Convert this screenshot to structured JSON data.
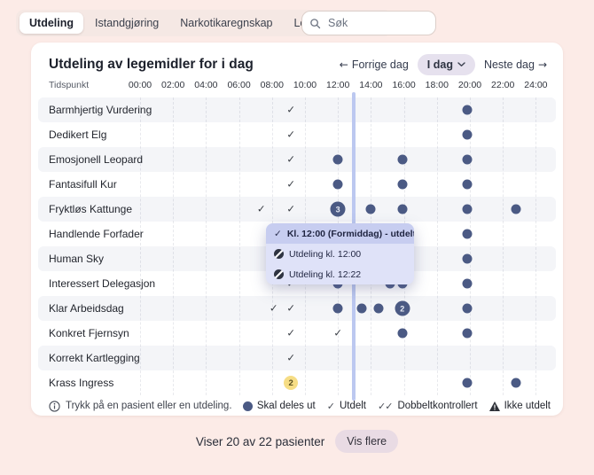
{
  "colors": {
    "page_bg": "#fcebe7",
    "tabstrip_bg": "#f5e8e4",
    "dot": "#4b5a84",
    "now_line": "#bcc8f0",
    "popup_bg": "#dfe2f8",
    "popup_highlight": "#c7cdf0",
    "warn_badge": "#f6dd85",
    "stripe": "#f4f5f8",
    "today_pill": "#e6e1ee",
    "more_pill": "#e9dbe4"
  },
  "tabs": {
    "items": [
      {
        "label": "Utdeling",
        "active": true
      },
      {
        "label": "Istandgjøring",
        "active": false
      },
      {
        "label": "Narkotikaregnskap",
        "active": false
      },
      {
        "label": "Legemidler i bruk",
        "active": false
      }
    ]
  },
  "search": {
    "placeholder": "Søk"
  },
  "panel": {
    "title": "Utdeling av legemidler for i dag",
    "nav": {
      "prev_label": "Forrige dag",
      "today_label": "I dag",
      "next_label": "Neste dag"
    },
    "axis": {
      "label": "Tidspunkt",
      "ticks": [
        "00:00",
        "02:00",
        "04:00",
        "06:00",
        "08:00",
        "10:00",
        "12:00",
        "14:00",
        "16:00",
        "18:00",
        "20:00",
        "22:00",
        "24:00"
      ]
    },
    "now_t": 12.97,
    "rows": [
      {
        "name": "Barmhjertig Vurdering",
        "events": [
          {
            "type": "check",
            "t": 9.15
          },
          {
            "type": "dot",
            "t": 19.85
          }
        ]
      },
      {
        "name": "Dedikert Elg",
        "events": [
          {
            "type": "check",
            "t": 9.15
          },
          {
            "type": "dot",
            "t": 19.85
          }
        ]
      },
      {
        "name": "Emosjonell Leopard",
        "events": [
          {
            "type": "check",
            "t": 9.15
          },
          {
            "type": "dot",
            "t": 12.0
          },
          {
            "type": "dot",
            "t": 15.9
          },
          {
            "type": "dot",
            "t": 19.85
          }
        ]
      },
      {
        "name": "Fantasifull Kur",
        "events": [
          {
            "type": "check",
            "t": 9.15
          },
          {
            "type": "dot",
            "t": 12.0
          },
          {
            "type": "dot",
            "t": 15.9
          },
          {
            "type": "dot",
            "t": 19.85
          }
        ]
      },
      {
        "name": "Fryktløs Kattunge",
        "events": [
          {
            "type": "check",
            "t": 7.35
          },
          {
            "type": "check",
            "t": 9.15
          },
          {
            "type": "badge",
            "t": 12.0,
            "count": "3"
          },
          {
            "type": "dot",
            "t": 14.0
          },
          {
            "type": "dot",
            "t": 15.9
          },
          {
            "type": "dot",
            "t": 19.85
          },
          {
            "type": "dot",
            "t": 22.8
          }
        ]
      },
      {
        "name": "Handlende Forfader",
        "events": [
          {
            "type": "dot",
            "t": 19.85
          }
        ]
      },
      {
        "name": "Human Sky",
        "events": [
          {
            "type": "dot",
            "t": 19.85
          }
        ]
      },
      {
        "name": "Interessert Delegasjon",
        "events": [
          {
            "type": "check",
            "t": 9.15
          },
          {
            "type": "dot",
            "t": 12.0
          },
          {
            "type": "dot",
            "t": 15.15
          },
          {
            "type": "dot",
            "t": 15.9
          },
          {
            "type": "dot",
            "t": 19.85
          }
        ]
      },
      {
        "name": "Klar Arbeidsdag",
        "events": [
          {
            "type": "check",
            "t": 8.1
          },
          {
            "type": "check",
            "t": 9.15
          },
          {
            "type": "dot",
            "t": 12.0
          },
          {
            "type": "dot",
            "t": 13.45
          },
          {
            "type": "dot",
            "t": 14.45
          },
          {
            "type": "badge",
            "t": 15.9,
            "count": "2"
          },
          {
            "type": "dot",
            "t": 19.85
          }
        ]
      },
      {
        "name": "Konkret Fjernsyn",
        "events": [
          {
            "type": "check",
            "t": 9.15
          },
          {
            "type": "check",
            "t": 12.0
          },
          {
            "type": "dot",
            "t": 15.9
          },
          {
            "type": "dot",
            "t": 19.85
          }
        ]
      },
      {
        "name": "Korrekt Kartlegging",
        "events": [
          {
            "type": "check",
            "t": 9.15
          }
        ]
      },
      {
        "name": "Krass Ingress",
        "events": [
          {
            "type": "badge-warn",
            "t": 9.15,
            "count": "2"
          },
          {
            "type": "dot",
            "t": 19.85
          },
          {
            "type": "dot",
            "t": 22.8
          }
        ]
      }
    ],
    "popup": {
      "items": [
        {
          "icon": "check",
          "label": "Kl. 12:00 (Formiddag) - utdelt",
          "highlighted": true
        },
        {
          "icon": "pill",
          "label": "Utdeling kl. 12:00",
          "highlighted": false
        },
        {
          "icon": "pill",
          "label": "Utdeling kl. 12:22",
          "highlighted": false
        }
      ]
    },
    "legend": {
      "hint": "Trykk på en pasient eller en utdeling.",
      "items": [
        {
          "icon": "dot",
          "label": "Skal deles ut"
        },
        {
          "icon": "check",
          "label": "Utdelt"
        },
        {
          "icon": "double-check",
          "label": "Dobbeltkontrollert"
        },
        {
          "icon": "triangle",
          "label": "Ikke utdelt"
        }
      ]
    }
  },
  "footer": {
    "summary": "Viser 20 av 22 pasienter",
    "more_label": "Vis flere"
  }
}
